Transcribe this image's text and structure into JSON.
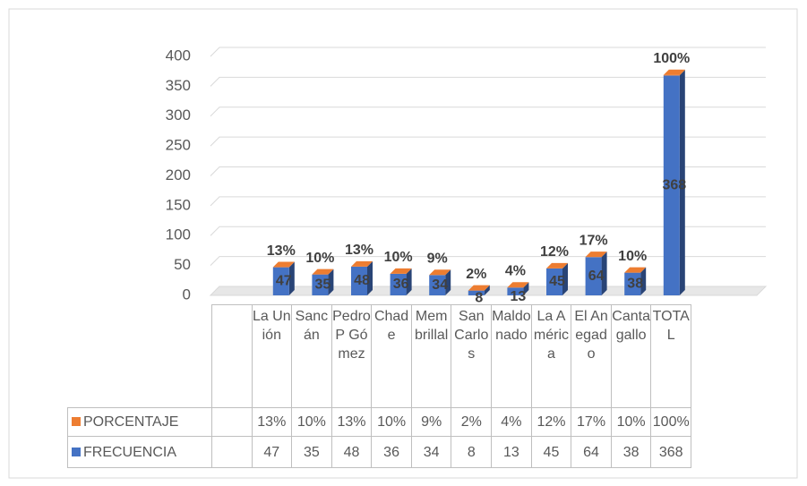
{
  "chart_data": {
    "type": "bar3d-stacked",
    "categories": [
      "La Unión",
      "Sancán",
      "Pedro P Gómez",
      "Chade",
      "Membrillal",
      "San Carlos",
      "Maldonado",
      "La América",
      "El Anegado",
      "Cantagallo",
      "TOTAL"
    ],
    "series": [
      {
        "name": "FRECUENCIA",
        "color": "#4472c4",
        "values": [
          47,
          35,
          48,
          36,
          34,
          8,
          13,
          45,
          64,
          38,
          368
        ]
      },
      {
        "name": "PORCENTAJE",
        "color": "#ed7d31",
        "values": [
          0.13,
          0.1,
          0.13,
          0.1,
          0.09,
          0.02,
          0.04,
          0.12,
          0.17,
          0.1,
          1.0
        ],
        "value_labels": [
          "13%",
          "10%",
          "13%",
          "10%",
          "9%",
          "2%",
          "4%",
          "12%",
          "17%",
          "10%",
          "100%"
        ]
      }
    ],
    "ylim": [
      0,
      400
    ],
    "yticks": [
      0,
      50,
      100,
      150,
      200,
      250,
      300,
      350,
      400
    ],
    "grid": true
  }
}
